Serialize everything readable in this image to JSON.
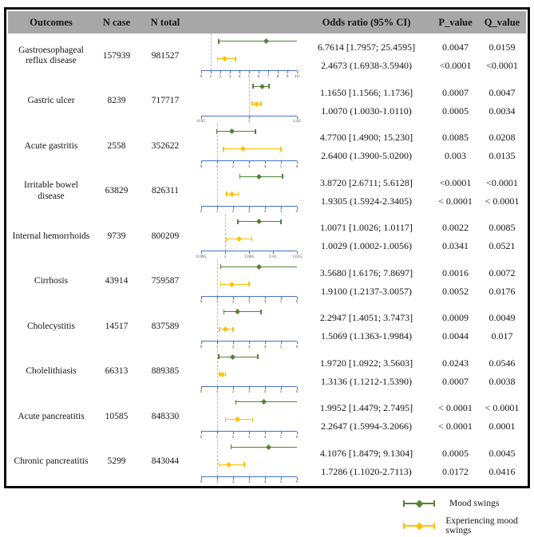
{
  "table": {
    "columns": [
      "Outcomes",
      "N case",
      "N total",
      "",
      "Odds ratio (95% CI)",
      "P_value",
      "Q_value"
    ]
  },
  "legend": {
    "items": [
      {
        "label": "Mood swings",
        "color": "#538135"
      },
      {
        "label": "Experiencing mood swings",
        "color": "#ffc000"
      }
    ]
  },
  "colors": {
    "header_bg": "#a7a7a7",
    "border": "#0e0e0e",
    "axis_blue": "#4472c4",
    "ref_dash_blue": "#9dc3e6",
    "series_green": "#538135",
    "series_yellow": "#ffc000"
  },
  "chart_data": {
    "type": "forest",
    "series": [
      {
        "name": "Mood swings",
        "color": "#538135"
      },
      {
        "name": "Experiencing mood swings",
        "color": "#ffc000"
      }
    ],
    "reference_line": 1,
    "rows": [
      {
        "outcome": "Gastroesophageal reflux disease",
        "outcome_lines": [
          "Gastroesophageal",
          "reflux disease"
        ],
        "n_case": "157939",
        "n_total": "981527",
        "axis": {
          "min": 0,
          "max": 10,
          "ticks": [
            0,
            1,
            2,
            3,
            4,
            5,
            6,
            7,
            8,
            9,
            10
          ],
          "tick_labels": [
            "0",
            "1",
            "2",
            "3",
            "4",
            "5",
            "6",
            "7",
            "8",
            "9",
            "10"
          ]
        },
        "entries": [
          {
            "or_text": "6.7614 [1.7957; 25.4595]",
            "p": "0.0047",
            "q": "0.0159",
            "or": 6.7614,
            "ci_low": 1.7957,
            "ci_high": 25.4595,
            "lo_f": 0.18,
            "c_f": 0.676,
            "hi_f": 1.0,
            "clip": true
          },
          {
            "or_text": "2.4673 (1.6938-3.5940)",
            "p": "<0.0001",
            "q": "<0.0001",
            "or": 2.4673,
            "ci_low": 1.6938,
            "ci_high": 3.594,
            "lo_f": 0.169,
            "c_f": 0.247,
            "hi_f": 0.359,
            "clip": false
          }
        ]
      },
      {
        "outcome": "Gastric ulcer",
        "outcome_lines": [
          "Gastric ulcer"
        ],
        "n_case": "8239",
        "n_total": "717717",
        "axis": {
          "min": 0.95,
          "max": 1.05,
          "ticks": [
            0.95,
            1,
            1.05
          ],
          "tick_labels": [
            "0.95",
            "1",
            "1.05"
          ]
        },
        "entries": [
          {
            "or_text": "1.1650 [1.1566; 1.1736]",
            "p": "0.0007",
            "q": "0.0047",
            "or": 1.165,
            "ci_low": 1.1566,
            "ci_high": 1.1736,
            "lo_f": 0.54,
            "c_f": 0.64,
            "hi_f": 0.71,
            "clip": false
          },
          {
            "or_text": "1.0070 (1.0030-1.0110)",
            "p": "0.0005",
            "q": "0.0034",
            "or": 1.007,
            "ci_low": 1.003,
            "ci_high": 1.011,
            "lo_f": 0.53,
            "c_f": 0.575,
            "hi_f": 0.625,
            "clip": false
          }
        ]
      },
      {
        "outcome": "Acute gastritis",
        "outcome_lines": [
          "Acute gastritis"
        ],
        "n_case": "2558",
        "n_total": "352622",
        "axis": {
          "min": 0,
          "max": 6,
          "ticks": [
            0,
            1,
            2,
            3,
            4,
            5,
            6
          ],
          "tick_labels": [
            "0",
            "1",
            "2",
            "3",
            "4",
            "5",
            "6"
          ]
        },
        "entries": [
          {
            "or_text": "4.7700 [1.4900; 15.230]",
            "p": "0.0085",
            "q": "0.0208",
            "or": 4.77,
            "ci_low": 1.49,
            "ci_high": 15.23,
            "lo_f": 0.16,
            "c_f": 0.32,
            "hi_f": 0.57,
            "clip": false
          },
          {
            "or_text": "2.6400 (1.3900-5.0200)",
            "p": "0.003",
            "q": "0.0135",
            "or": 2.64,
            "ci_low": 1.39,
            "ci_high": 5.02,
            "lo_f": 0.232,
            "c_f": 0.44,
            "hi_f": 0.837,
            "clip": false
          }
        ]
      },
      {
        "outcome": "Irritable bowel disease",
        "outcome_lines": [
          "Irritable bowel",
          "disease"
        ],
        "n_case": "63829",
        "n_total": "826311",
        "axis": {
          "min": 0,
          "max": 6,
          "ticks": [
            0,
            1,
            2,
            3,
            4,
            5,
            6
          ],
          "tick_labels": [
            "0",
            "1",
            "2",
            "3",
            "4",
            "5",
            "6"
          ]
        },
        "entries": [
          {
            "or_text": "3.8720 [2.6711; 5.6128]",
            "p": "<0.0001",
            "q": "<0.0001",
            "or": 3.872,
            "ci_low": 2.6711,
            "ci_high": 5.6128,
            "lo_f": 0.4,
            "c_f": 0.605,
            "hi_f": 0.85,
            "clip": false
          },
          {
            "or_text": "1.9305 (1.5924-2.3405)",
            "p": "< 0.0001",
            "q": "< 0.0001",
            "or": 1.9305,
            "ci_low": 1.5924,
            "ci_high": 2.3405,
            "lo_f": 0.265,
            "c_f": 0.322,
            "hi_f": 0.39,
            "clip": false
          }
        ]
      },
      {
        "outcome": "Internal hemorrhoids",
        "outcome_lines": [
          "Internal hemorrhoids"
        ],
        "n_case": "9739",
        "n_total": "800209",
        "axis": {
          "min": 0.995,
          "max": 1.015,
          "ticks": [
            0.995,
            1,
            1.005,
            1.01,
            1.015
          ],
          "tick_labels": [
            "0.995",
            "1",
            "1.005",
            "1.01",
            "1.015"
          ]
        },
        "entries": [
          {
            "or_text": "1.0071 [1.0026; 1.0117]",
            "p": "0.0022",
            "q": "0.0085",
            "or": 1.0071,
            "ci_low": 1.0026,
            "ci_high": 1.0117,
            "lo_f": 0.38,
            "c_f": 0.605,
            "hi_f": 0.835,
            "clip": false
          },
          {
            "or_text": "1.0029 (1.0002-1.0056)",
            "p": "0.0341",
            "q": "0.0521",
            "or": 1.0029,
            "ci_low": 1.0002,
            "ci_high": 1.0056,
            "lo_f": 0.26,
            "c_f": 0.395,
            "hi_f": 0.53,
            "clip": false
          }
        ]
      },
      {
        "outcome": "Cirrhosis",
        "outcome_lines": [
          "Cirrhosis"
        ],
        "n_case": "43914",
        "n_total": "759587",
        "axis": {
          "min": 0,
          "max": 6,
          "ticks": [
            0,
            1,
            2,
            3,
            4,
            5,
            6
          ],
          "tick_labels": [
            "0",
            "1",
            "2",
            "3",
            "4",
            "5",
            "6"
          ]
        },
        "entries": [
          {
            "or_text": "3.5680 [1.6176; 7.8697]",
            "p": "0.0016",
            "q": "0.0072",
            "or": 3.568,
            "ci_low": 1.6176,
            "ci_high": 7.8697,
            "lo_f": 0.2,
            "c_f": 0.6,
            "hi_f": 1.0,
            "clip": true
          },
          {
            "or_text": "1.9100 (1.2137-3.0057)",
            "p": "0.0052",
            "q": "0.0176",
            "or": 1.91,
            "ci_low": 1.2137,
            "ci_high": 3.0057,
            "lo_f": 0.202,
            "c_f": 0.318,
            "hi_f": 0.501,
            "clip": false
          }
        ]
      },
      {
        "outcome": "Cholecystitis",
        "outcome_lines": [
          "Cholecystitis"
        ],
        "n_case": "14517",
        "n_total": "837589",
        "axis": {
          "min": 0,
          "max": 6,
          "ticks": [
            0,
            1,
            2,
            3,
            4,
            5,
            6
          ],
          "tick_labels": [
            "0",
            "1",
            "2",
            "3",
            "4",
            "5",
            "6"
          ]
        },
        "entries": [
          {
            "or_text": "2.2947 [1.4051; 3.7473]",
            "p": "0.0009",
            "q": "0.0049",
            "or": 2.2947,
            "ci_low": 1.4051,
            "ci_high": 3.7473,
            "lo_f": 0.234,
            "c_f": 0.382,
            "hi_f": 0.625,
            "clip": false
          },
          {
            "or_text": "1.5069 (1.1363-1.9984)",
            "p": "0.0044",
            "q": "0.017",
            "or": 1.5069,
            "ci_low": 1.1363,
            "ci_high": 1.9984,
            "lo_f": 0.189,
            "c_f": 0.251,
            "hi_f": 0.333,
            "clip": false
          }
        ]
      },
      {
        "outcome": "Cholelithiasis",
        "outcome_lines": [
          "Cholelithiasis"
        ],
        "n_case": "66313",
        "n_total": "889385",
        "axis": {
          "min": 0,
          "max": 6,
          "ticks": [
            0,
            1,
            2,
            3,
            4,
            5,
            6
          ],
          "tick_labels": [
            "0",
            "1",
            "2",
            "3",
            "4",
            "5",
            "6"
          ]
        },
        "entries": [
          {
            "or_text": "1.9720 [1.0922; 3.5603]",
            "p": "0.0243",
            "q": "0.0546",
            "or": 1.972,
            "ci_low": 1.0922,
            "ci_high": 3.5603,
            "lo_f": 0.182,
            "c_f": 0.329,
            "hi_f": 0.593,
            "clip": false
          },
          {
            "or_text": "1.3136 (1.1212-1.5390)",
            "p": "0.0007",
            "q": "0.0038",
            "or": 1.3136,
            "ci_low": 1.1212,
            "ci_high": 1.539,
            "lo_f": 0.187,
            "c_f": 0.219,
            "hi_f": 0.257,
            "clip": false
          }
        ]
      },
      {
        "outcome": "Acute pancreatitis",
        "outcome_lines": [
          "Acute pancreatitis"
        ],
        "n_case": "10585",
        "n_total": "848330",
        "axis": {
          "min": 0,
          "max": 6,
          "ticks": [
            0,
            1,
            2,
            3,
            4,
            5,
            6
          ],
          "tick_labels": [
            "0",
            "1",
            "2",
            "3",
            "4",
            "5",
            "6"
          ]
        },
        "entries": [
          {
            "or_text": "1.9952 [1.4479; 2.7495]",
            "p": "< 0.0001",
            "q": "< 0.0001",
            "or": 1.9952,
            "ci_low": 1.4479,
            "ci_high": 2.7495,
            "lo_f": 0.36,
            "c_f": 0.65,
            "hi_f": 1.0,
            "clip": true
          },
          {
            "or_text": "2.2647 (1.5994-3.2066)",
            "p": "< 0.0001",
            "q": "0.0001",
            "or": 2.2647,
            "ci_low": 1.5994,
            "ci_high": 3.2066,
            "lo_f": 0.25,
            "c_f": 0.375,
            "hi_f": 0.54,
            "clip": false
          }
        ]
      },
      {
        "outcome": "Chronic pancreatitis",
        "outcome_lines": [
          "Chronic pancreatitis"
        ],
        "n_case": "5299",
        "n_total": "843044",
        "axis": {
          "min": 0,
          "max": 6,
          "ticks": [
            0,
            1,
            2,
            3,
            4,
            5,
            6
          ],
          "tick_labels": [
            "0",
            "1",
            "2",
            "3",
            "4",
            "5",
            "6"
          ]
        },
        "entries": [
          {
            "or_text": "4.1076 [1.8479; 9.1304]",
            "p": "0.0005",
            "q": "0.0045",
            "or": 4.1076,
            "ci_low": 1.8479,
            "ci_high": 9.1304,
            "lo_f": 0.31,
            "c_f": 0.7,
            "hi_f": 1.0,
            "clip": true
          },
          {
            "or_text": "1.7286 (1.1020-2.7113)",
            "p": "0.0172",
            "q": "0.0416",
            "or": 1.7286,
            "ci_low": 1.102,
            "ci_high": 2.7113,
            "lo_f": 0.184,
            "c_f": 0.288,
            "hi_f": 0.452,
            "clip": false
          }
        ]
      }
    ]
  }
}
